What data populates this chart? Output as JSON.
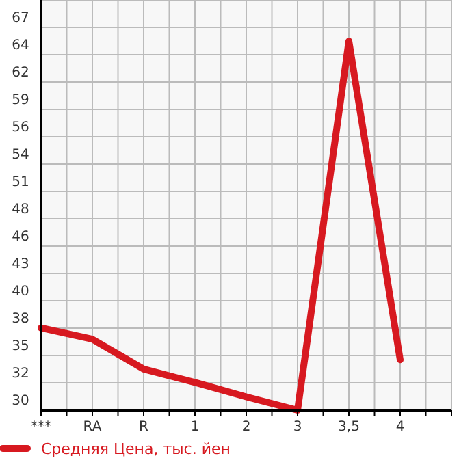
{
  "chart_data": {
    "type": "line",
    "categories": [
      "***",
      "RA",
      "R",
      "1",
      "2",
      "3",
      "3,5",
      "4"
    ],
    "series": [
      {
        "name": "Средняя Цена, тыс. йен",
        "color": "#d71920",
        "values": [
          37.6,
          36.5,
          33.6,
          32.3,
          30.9,
          29.6,
          65.5,
          34.5
        ]
      }
    ],
    "ylim": [
      29.6,
      69.5
    ],
    "yticks": [
      {
        "value": 29.6,
        "label": "30"
      },
      {
        "value": 32.26,
        "label": "32"
      },
      {
        "value": 34.92,
        "label": "35"
      },
      {
        "value": 37.58,
        "label": "38"
      },
      {
        "value": 40.24,
        "label": "40"
      },
      {
        "value": 42.9,
        "label": "43"
      },
      {
        "value": 45.56,
        "label": "46"
      },
      {
        "value": 48.22,
        "label": "48"
      },
      {
        "value": 50.88,
        "label": "51"
      },
      {
        "value": 53.54,
        "label": "54"
      },
      {
        "value": 56.2,
        "label": "56"
      },
      {
        "value": 58.86,
        "label": "59"
      },
      {
        "value": 61.52,
        "label": "62"
      },
      {
        "value": 64.18,
        "label": "64"
      },
      {
        "value": 66.84,
        "label": "67"
      }
    ],
    "grid": true,
    "legend": "bottom",
    "marker": "none",
    "line_style": "solid"
  }
}
